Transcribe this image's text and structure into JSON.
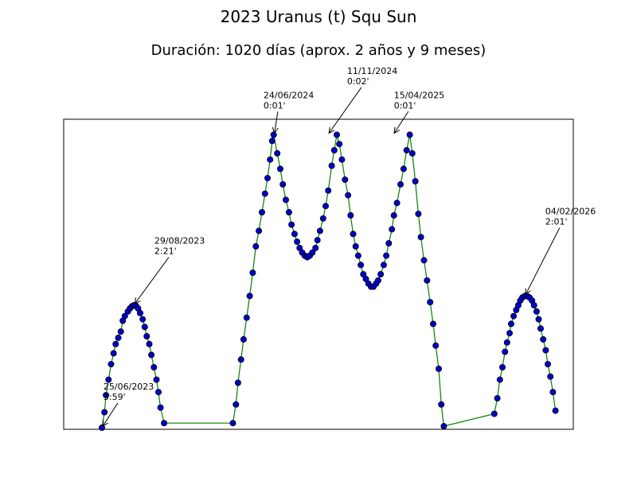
{
  "chart_data": {
    "type": "line",
    "title": "2023 Uranus (t) Squ Sun",
    "subtitle": "Duración: 1020 días (aprox. 2 años y 9 meses)",
    "xlabel": "",
    "ylabel": "",
    "xlim": [
      0,
      100
    ],
    "ylim": [
      0,
      100
    ],
    "grid": false,
    "axis_ticks": false,
    "line_color": "#008000",
    "marker_color": "#0000cc",
    "marker_edge": "#000000",
    "series": [
      {
        "points": [
          [
            7.5,
            0.5
          ],
          [
            8.0,
            5.5
          ],
          [
            8.3,
            11
          ],
          [
            8.8,
            16
          ],
          [
            9.3,
            21
          ],
          [
            9.8,
            24.5
          ],
          [
            10.2,
            27.5
          ],
          [
            10.7,
            29.5
          ],
          [
            11.2,
            31.5
          ],
          [
            11.6,
            35
          ],
          [
            12.0,
            36.5
          ],
          [
            12.6,
            38
          ],
          [
            13.0,
            39
          ],
          [
            13.4,
            39.7
          ],
          [
            13.8,
            40
          ],
          [
            14.2,
            39.8
          ],
          [
            14.6,
            39
          ],
          [
            15.0,
            37.5
          ],
          [
            15.5,
            35.5
          ],
          [
            15.9,
            33
          ],
          [
            16.3,
            30
          ],
          [
            16.8,
            27.5
          ],
          [
            17.2,
            24
          ],
          [
            17.7,
            20
          ],
          [
            18.2,
            16
          ],
          [
            18.6,
            12
          ],
          [
            19.0,
            7
          ],
          [
            19.7,
            2
          ],
          [
            33.2,
            2
          ],
          [
            33.8,
            8
          ],
          [
            34.2,
            15
          ],
          [
            34.8,
            22.5
          ],
          [
            35.3,
            29
          ],
          [
            35.9,
            36
          ],
          [
            36.5,
            43
          ],
          [
            37.1,
            50.5
          ],
          [
            37.7,
            59
          ],
          [
            38.3,
            64
          ],
          [
            38.9,
            70
          ],
          [
            39.5,
            76
          ],
          [
            40.0,
            81
          ],
          [
            40.5,
            87
          ],
          [
            40.9,
            93
          ],
          [
            41.2,
            95
          ],
          [
            41.9,
            89
          ],
          [
            42.5,
            84
          ],
          [
            43.0,
            79
          ],
          [
            43.6,
            74
          ],
          [
            44.2,
            70
          ],
          [
            44.7,
            66
          ],
          [
            45.3,
            63
          ],
          [
            45.8,
            60.5
          ],
          [
            46.3,
            58.5
          ],
          [
            46.8,
            57
          ],
          [
            47.3,
            56
          ],
          [
            47.8,
            55.5
          ],
          [
            48.3,
            56
          ],
          [
            48.8,
            57
          ],
          [
            49.4,
            58.5
          ],
          [
            49.8,
            61
          ],
          [
            50.3,
            64
          ],
          [
            50.9,
            68
          ],
          [
            51.4,
            72
          ],
          [
            51.9,
            77
          ],
          [
            52.6,
            85
          ],
          [
            53.1,
            90
          ],
          [
            53.6,
            95
          ],
          [
            54.1,
            92
          ],
          [
            54.6,
            87
          ],
          [
            55.2,
            80.5
          ],
          [
            55.8,
            75.5
          ],
          [
            56.3,
            69
          ],
          [
            56.8,
            63
          ],
          [
            57.3,
            59
          ],
          [
            57.8,
            56
          ],
          [
            58.3,
            53
          ],
          [
            58.8,
            50
          ],
          [
            59.3,
            48.5
          ],
          [
            59.8,
            47
          ],
          [
            60.3,
            46
          ],
          [
            60.8,
            46
          ],
          [
            61.3,
            47
          ],
          [
            61.7,
            48
          ],
          [
            62.2,
            50
          ],
          [
            62.8,
            53
          ],
          [
            63.3,
            56
          ],
          [
            63.8,
            60
          ],
          [
            64.4,
            64.5
          ],
          [
            64.8,
            69
          ],
          [
            65.4,
            73
          ],
          [
            66.1,
            79
          ],
          [
            66.7,
            84
          ],
          [
            67.3,
            90
          ],
          [
            67.9,
            95
          ],
          [
            68.4,
            89
          ],
          [
            69.0,
            80
          ],
          [
            69.6,
            69.5
          ],
          [
            70.1,
            62
          ],
          [
            70.7,
            54.5
          ],
          [
            71.3,
            48
          ],
          [
            71.9,
            41
          ],
          [
            72.5,
            34
          ],
          [
            73.0,
            27
          ],
          [
            73.6,
            19.5
          ],
          [
            74.1,
            8
          ],
          [
            74.6,
            1
          ],
          [
            84.5,
            5
          ],
          [
            85.1,
            10
          ],
          [
            85.6,
            16
          ],
          [
            86.1,
            20
          ],
          [
            86.6,
            25
          ],
          [
            87.0,
            28
          ],
          [
            87.5,
            31
          ],
          [
            87.8,
            34
          ],
          [
            88.3,
            36.5
          ],
          [
            88.8,
            38.5
          ],
          [
            89.2,
            40
          ],
          [
            89.6,
            41.5
          ],
          [
            90.0,
            42.5
          ],
          [
            90.5,
            43
          ],
          [
            90.9,
            43
          ],
          [
            91.4,
            42.5
          ],
          [
            91.9,
            41.5
          ],
          [
            92.3,
            40
          ],
          [
            92.8,
            38
          ],
          [
            93.2,
            35.5
          ],
          [
            93.6,
            32.5
          ],
          [
            94.1,
            29
          ],
          [
            94.6,
            25.5
          ],
          [
            95.0,
            21
          ],
          [
            95.5,
            17
          ],
          [
            96.0,
            12
          ],
          [
            96.5,
            6
          ]
        ]
      }
    ],
    "annotations": [
      {
        "line1": "25/06/2023",
        "line2": "3:59'",
        "target": [
          7.5,
          0.5
        ],
        "text_at": [
          7.8,
          9.5
        ]
      },
      {
        "line1": "29/08/2023",
        "line2": "2:21'",
        "target": [
          13.8,
          40
        ],
        "text_at": [
          17.8,
          56.5
        ]
      },
      {
        "line1": "24/06/2024",
        "line2": "0:01'",
        "target": [
          41.2,
          95
        ],
        "text_at": [
          39.2,
          103.5
        ]
      },
      {
        "line1": "11/11/2024",
        "line2": "0:02'",
        "target": [
          51.9,
          95
        ],
        "text_at": [
          55.6,
          111.3
        ]
      },
      {
        "line1": "15/04/2025",
        "line2": "0:01'",
        "target": [
          64.7,
          95
        ],
        "text_at": [
          64.8,
          103.5
        ]
      },
      {
        "line1": "04/02/2026",
        "line2": "2:01'",
        "target": [
          90.5,
          43
        ],
        "text_at": [
          94.5,
          66
        ]
      }
    ]
  }
}
